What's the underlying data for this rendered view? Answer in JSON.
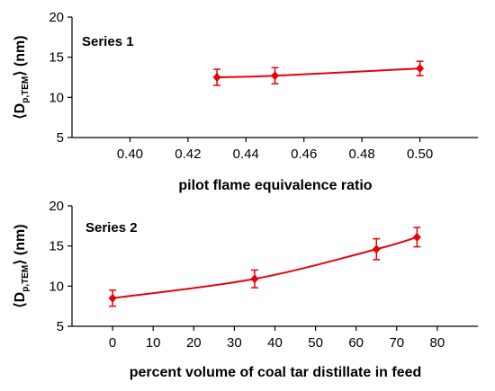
{
  "colors": {
    "series": "#e8000b",
    "axis": "#000000"
  },
  "chart_data": [
    {
      "type": "scatter",
      "annotation": "Series 1",
      "xlabel": "pilot flame equivalence ratio",
      "ylabel": "⟨D",
      "ylabel_sub": "p,TEM",
      "ylabel_tail": "⟩ (nm)",
      "xlim": [
        0.38,
        0.52
      ],
      "ylim": [
        5,
        20
      ],
      "xticks": [
        "0.40",
        "0.42",
        "0.44",
        "0.46",
        "0.48",
        "0.50"
      ],
      "yticks": [
        "5",
        "10",
        "15",
        "20"
      ],
      "grid": false,
      "series": [
        {
          "x": [
            0.43,
            0.45,
            0.5
          ],
          "y": [
            12.5,
            12.7,
            13.6
          ],
          "yerr": [
            1.0,
            1.0,
            0.9
          ]
        }
      ]
    },
    {
      "type": "scatter",
      "annotation": "Series 2",
      "xlabel": "percent volume of coal tar distillate in feed",
      "ylabel": "⟨D",
      "ylabel_sub": "p,TEM",
      "ylabel_tail": "⟩ (nm)",
      "xlim": [
        -10,
        90
      ],
      "ylim": [
        5,
        20
      ],
      "xticks": [
        "0",
        "10",
        "20",
        "30",
        "40",
        "50",
        "60",
        "70",
        "80"
      ],
      "yticks": [
        "5",
        "10",
        "15",
        "20"
      ],
      "grid": false,
      "series": [
        {
          "x": [
            0,
            35,
            65,
            75
          ],
          "y": [
            8.5,
            10.9,
            14.6,
            16.1
          ],
          "yerr": [
            1.0,
            1.1,
            1.3,
            1.2
          ]
        }
      ]
    }
  ]
}
